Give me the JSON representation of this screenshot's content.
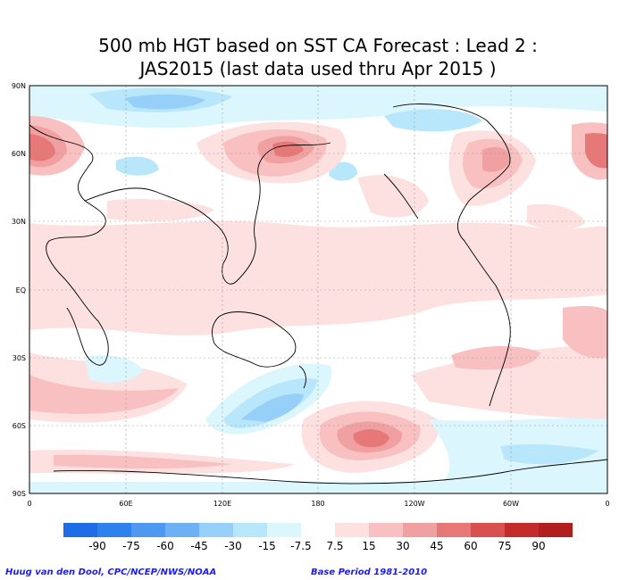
{
  "title_line1": "500 mb HGT based on SST CA Forecast : Lead 2 :",
  "title_line2": "JAS2015 (last data used thru Apr 2015 )",
  "lat_labels": [
    "90N",
    "60N",
    "30N",
    "EQ",
    "30S",
    "60S",
    "90S"
  ],
  "lon_labels": [
    "0",
    "60E",
    "120E",
    "180",
    "120W",
    "60W",
    "0"
  ],
  "legend": {
    "levels": [
      "-90",
      "-75",
      "-60",
      "-45",
      "-30",
      "-15",
      "-7.5",
      "7.5",
      "15",
      "30",
      "45",
      "60",
      "75",
      "90"
    ],
    "colors": [
      "#1e6ce6",
      "#2f82ee",
      "#4e98f2",
      "#6eb0f6",
      "#96cff8",
      "#b8e6fa",
      "#dcf6fd",
      "#ffffff",
      "#fde0e0",
      "#f8c0c0",
      "#f0a0a0",
      "#e67878",
      "#d85050",
      "#c42c2c",
      "#b01e1e"
    ]
  },
  "credit_left": "Huug van den Dool, CPC/NCEP/NWS/NOAA",
  "credit_right": "Base Period 1981-2010"
}
